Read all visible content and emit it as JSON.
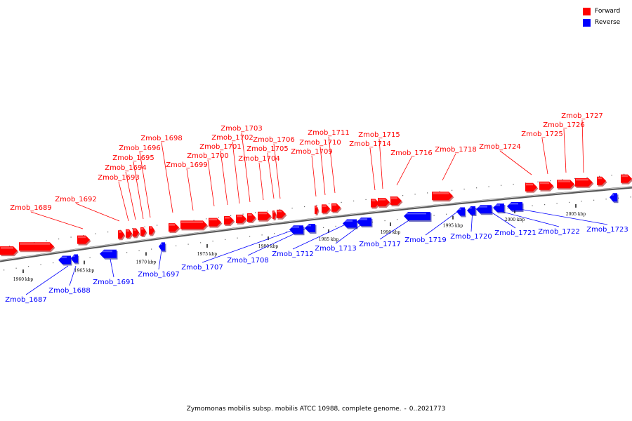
{
  "legend": {
    "forward_label": "Forward",
    "reverse_label": "Reverse",
    "forward_color": "#ff0000",
    "reverse_color": "#0000ff"
  },
  "caption": {
    "organism": "Zymomonas mobilis subsp. mobilis ATCC 10988, complete genome.",
    "range": "0..2021773"
  },
  "scale_ticks": [
    "1960 kbp",
    "1965 kbp",
    "1970 kbp",
    "1975 kbp",
    "1980 kbp",
    "1985 kbp",
    "1990 kbp",
    "1995 kbp",
    "2000 kbp",
    "2005 kbp"
  ],
  "genes": [
    {
      "name": "Zmob_1687",
      "strand": "reverse"
    },
    {
      "name": "Zmob_1688",
      "strand": "reverse"
    },
    {
      "name": "Zmob_1689",
      "strand": "forward"
    },
    {
      "name": "Zmob_1691",
      "strand": "reverse"
    },
    {
      "name": "Zmob_1692",
      "strand": "forward"
    },
    {
      "name": "Zmob_1693",
      "strand": "forward"
    },
    {
      "name": "Zmob_1694",
      "strand": "forward"
    },
    {
      "name": "Zmob_1695",
      "strand": "forward"
    },
    {
      "name": "Zmob_1696",
      "strand": "forward"
    },
    {
      "name": "Zmob_1697",
      "strand": "reverse"
    },
    {
      "name": "Zmob_1698",
      "strand": "forward"
    },
    {
      "name": "Zmob_1699",
      "strand": "forward"
    },
    {
      "name": "Zmob_1700",
      "strand": "forward"
    },
    {
      "name": "Zmob_1701",
      "strand": "forward"
    },
    {
      "name": "Zmob_1702",
      "strand": "forward"
    },
    {
      "name": "Zmob_1703",
      "strand": "forward"
    },
    {
      "name": "Zmob_1704",
      "strand": "forward"
    },
    {
      "name": "Zmob_1705",
      "strand": "forward"
    },
    {
      "name": "Zmob_1706",
      "strand": "forward"
    },
    {
      "name": "Zmob_1707",
      "strand": "reverse"
    },
    {
      "name": "Zmob_1708",
      "strand": "reverse"
    },
    {
      "name": "Zmob_1709",
      "strand": "forward"
    },
    {
      "name": "Zmob_1710",
      "strand": "forward"
    },
    {
      "name": "Zmob_1711",
      "strand": "forward"
    },
    {
      "name": "Zmob_1712",
      "strand": "reverse"
    },
    {
      "name": "Zmob_1713",
      "strand": "reverse"
    },
    {
      "name": "Zmob_1714",
      "strand": "forward"
    },
    {
      "name": "Zmob_1715",
      "strand": "forward"
    },
    {
      "name": "Zmob_1716",
      "strand": "forward"
    },
    {
      "name": "Zmob_1717",
      "strand": "reverse"
    },
    {
      "name": "Zmob_1718",
      "strand": "forward"
    },
    {
      "name": "Zmob_1719",
      "strand": "reverse"
    },
    {
      "name": "Zmob_1720",
      "strand": "reverse"
    },
    {
      "name": "Zmob_1721",
      "strand": "reverse"
    },
    {
      "name": "Zmob_1722",
      "strand": "reverse"
    },
    {
      "name": "Zmob_1723",
      "strand": "reverse"
    },
    {
      "name": "Zmob_1724",
      "strand": "forward"
    },
    {
      "name": "Zmob_1725",
      "strand": "forward"
    },
    {
      "name": "Zmob_1726",
      "strand": "forward"
    },
    {
      "name": "Zmob_1727",
      "strand": "forward"
    }
  ]
}
